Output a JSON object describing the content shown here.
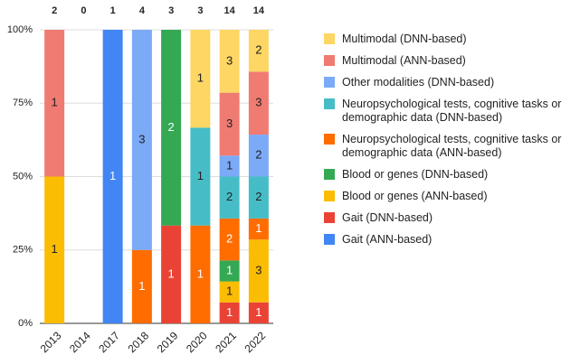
{
  "chart_data": {
    "type": "stacked_bar_100",
    "categories": [
      "2013",
      "2014",
      "2017",
      "2018",
      "2019",
      "2020",
      "2021",
      "2022"
    ],
    "totals": [
      2,
      0,
      1,
      4,
      3,
      3,
      14,
      14
    ],
    "series": [
      {
        "name": "Multimodal (DNN-based)",
        "color": "#fdd663",
        "values": [
          0,
          0,
          0,
          0,
          0,
          1,
          3,
          2
        ]
      },
      {
        "name": "Multimodal (ANN-based)",
        "color": "#f07b72",
        "values": [
          1,
          0,
          0,
          0,
          0,
          0,
          3,
          3
        ]
      },
      {
        "name": "Other modalities (DNN-based)",
        "color": "#7baaf7",
        "values": [
          0,
          0,
          0,
          3,
          0,
          0,
          1,
          2
        ]
      },
      {
        "name": "Neuropsychological tests, cognitive tasks or demographic data (DNN-based)",
        "color": "#46bdc6",
        "values": [
          0,
          0,
          0,
          0,
          0,
          1,
          2,
          2
        ]
      },
      {
        "name": "Neuropsychological tests, cognitive tasks or demographic data (ANN-based)",
        "color": "#ff6d01",
        "values": [
          0,
          0,
          0,
          1,
          0,
          1,
          2,
          1
        ]
      },
      {
        "name": "Blood or genes (DNN-based)",
        "color": "#34a853",
        "values": [
          0,
          0,
          0,
          0,
          2,
          0,
          1,
          0
        ]
      },
      {
        "name": "Blood or genes (ANN-based)",
        "color": "#fbbc04",
        "values": [
          1,
          0,
          0,
          0,
          0,
          0,
          1,
          3
        ]
      },
      {
        "name": "Gait (DNN-based)",
        "color": "#ea4335",
        "values": [
          0,
          0,
          0,
          0,
          1,
          0,
          1,
          1
        ]
      },
      {
        "name": "Gait (ANN-based)",
        "color": "#4285f4",
        "values": [
          0,
          0,
          1,
          0,
          0,
          0,
          0,
          0
        ]
      }
    ],
    "ylim": [
      0,
      100
    ],
    "yticks": [
      {
        "value": 0,
        "label": "0%"
      },
      {
        "value": 25,
        "label": "25%"
      },
      {
        "value": 50,
        "label": "50%"
      },
      {
        "value": 75,
        "label": "75%"
      },
      {
        "value": 100,
        "label": "100%"
      }
    ],
    "grid": true
  }
}
